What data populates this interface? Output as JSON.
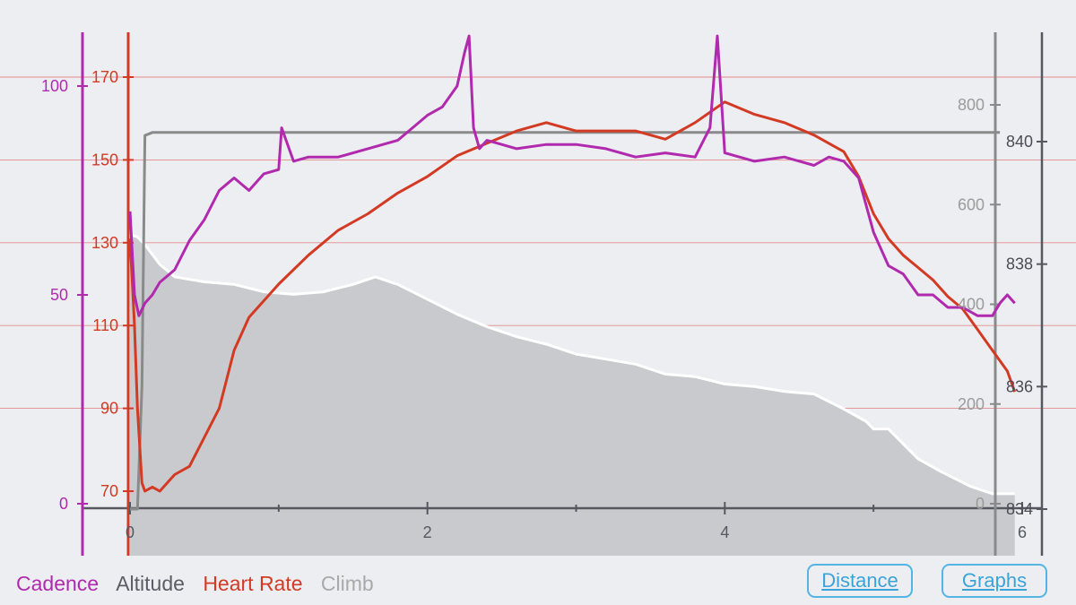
{
  "colors": {
    "cadence": "#b12aae",
    "altitude": "#8a8a8a",
    "heart_rate": "#d33a24",
    "climb": "#a9a9a9",
    "grid": "#e48a8a",
    "axis": "#55585f",
    "button": "#3aa3d9"
  },
  "legend": {
    "cadence": "Cadence",
    "altitude": "Altitude",
    "heart_rate": "Heart Rate",
    "climb": "Climb"
  },
  "buttons": {
    "distance": "Distance",
    "graphs": "Graphs"
  },
  "chart_data": {
    "type": "line",
    "x_axis": {
      "ticks": [
        "0",
        "2",
        "4",
        "6"
      ],
      "range": [
        0,
        6
      ]
    },
    "axes": {
      "cadence": {
        "ticks": [
          "0",
          "50",
          "100"
        ],
        "range": [
          0,
          100
        ]
      },
      "heart_rate": {
        "ticks": [
          "70",
          "90",
          "110",
          "130",
          "150",
          "170"
        ],
        "range": [
          70,
          170
        ]
      },
      "climb": {
        "ticks": [
          "0",
          "200",
          "400",
          "600",
          "800"
        ],
        "range": [
          0,
          800
        ]
      },
      "altitude": {
        "ticks": [
          "834",
          "836",
          "838",
          "840"
        ],
        "range": [
          834,
          841
        ]
      }
    },
    "grid": true,
    "series": [
      {
        "name": "Climb",
        "axis": "climb",
        "style": "area",
        "x": [
          0.0,
          0.05,
          0.1,
          0.2,
          0.3,
          0.5,
          0.7,
          0.9,
          1.1,
          1.3,
          1.5,
          1.65,
          1.8,
          2.0,
          2.2,
          2.4,
          2.6,
          2.8,
          3.0,
          3.2,
          3.4,
          3.6,
          3.8,
          4.0,
          4.2,
          4.4,
          4.6,
          4.8,
          4.95,
          5.0,
          5.1,
          5.3,
          5.45,
          5.55,
          5.65,
          5.8,
          5.95
        ],
        "y": [
          540,
          535,
          520,
          480,
          455,
          445,
          440,
          425,
          420,
          425,
          440,
          455,
          440,
          410,
          380,
          355,
          335,
          320,
          300,
          290,
          280,
          260,
          255,
          240,
          235,
          225,
          220,
          190,
          165,
          150,
          150,
          90,
          65,
          50,
          35,
          20,
          20
        ]
      },
      {
        "name": "Altitude",
        "axis": "altitude",
        "style": "line",
        "x": [
          0.0,
          0.05,
          0.08,
          0.1,
          0.15,
          1.0,
          2.0,
          3.0,
          4.0,
          5.0,
          5.85
        ],
        "y": [
          834,
          834,
          836,
          840.1,
          840.15,
          840.15,
          840.15,
          840.15,
          840.15,
          840.15,
          840.15
        ]
      },
      {
        "name": "Heart Rate",
        "axis": "heart_rate",
        "style": "line",
        "x": [
          0.0,
          0.03,
          0.05,
          0.08,
          0.1,
          0.15,
          0.2,
          0.3,
          0.4,
          0.5,
          0.6,
          0.7,
          0.8,
          0.9,
          1.0,
          1.2,
          1.4,
          1.6,
          1.8,
          2.0,
          2.2,
          2.4,
          2.6,
          2.8,
          3.0,
          3.2,
          3.4,
          3.6,
          3.8,
          4.0,
          4.2,
          4.4,
          4.6,
          4.8,
          4.9,
          5.0,
          5.1,
          5.2,
          5.3,
          5.4,
          5.5,
          5.6,
          5.7,
          5.8,
          5.9,
          5.95
        ],
        "y": [
          131,
          110,
          90,
          72,
          70,
          71,
          70,
          74,
          76,
          83,
          90,
          104,
          112,
          116,
          120,
          127,
          133,
          137,
          142,
          146,
          151,
          154,
          157,
          159,
          157,
          157,
          157,
          155,
          159,
          164,
          161,
          159,
          156,
          152,
          146,
          137,
          131,
          127,
          124,
          121,
          117,
          114,
          109,
          104,
          99,
          94
        ]
      },
      {
        "name": "Cadence",
        "axis": "cadence",
        "style": "line",
        "x": [
          0.0,
          0.03,
          0.06,
          0.1,
          0.15,
          0.2,
          0.3,
          0.4,
          0.5,
          0.6,
          0.7,
          0.8,
          0.9,
          1.0,
          1.02,
          1.1,
          1.2,
          1.3,
          1.4,
          1.6,
          1.8,
          1.9,
          2.0,
          2.1,
          2.2,
          2.25,
          2.28,
          2.31,
          2.35,
          2.4,
          2.5,
          2.6,
          2.8,
          3.0,
          3.2,
          3.4,
          3.6,
          3.8,
          3.9,
          3.95,
          4.0,
          4.2,
          4.4,
          4.6,
          4.7,
          4.8,
          4.9,
          5.0,
          5.1,
          5.2,
          5.3,
          5.4,
          5.5,
          5.6,
          5.7,
          5.8,
          5.85,
          5.9,
          5.95
        ],
        "y": [
          70,
          50,
          45,
          48,
          50,
          53,
          56,
          63,
          68,
          75,
          78,
          75,
          79,
          80,
          90,
          82,
          83,
          83,
          83,
          85,
          87,
          90,
          93,
          95,
          100,
          108,
          112,
          90,
          85,
          87,
          86,
          85,
          86,
          86,
          85,
          83,
          84,
          83,
          90,
          112,
          84,
          82,
          83,
          81,
          83,
          82,
          78,
          65,
          57,
          55,
          50,
          50,
          47,
          47,
          45,
          45,
          48,
          50,
          48
        ]
      }
    ]
  }
}
